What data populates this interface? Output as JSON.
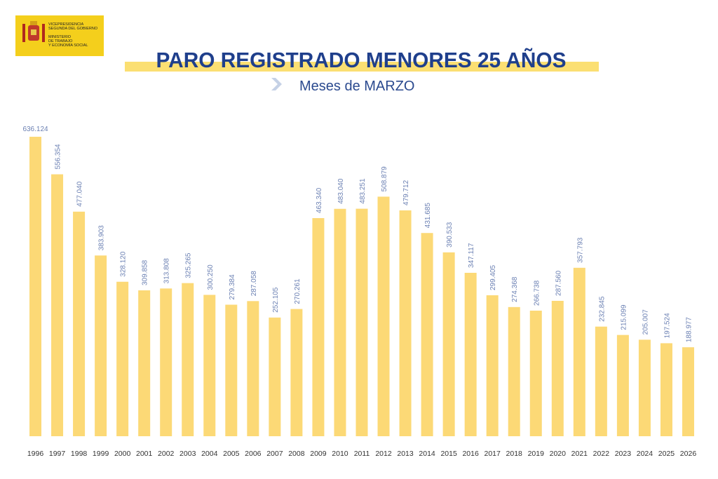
{
  "logo": [
    "VICEPRESIDENCIA",
    "SEGUNDA DEL GOBIERNO",
    "MINISTERIO",
    "DE TRABAJO",
    "Y ECONOMÍA SOCIAL"
  ],
  "chart_data": {
    "type": "bar",
    "title": "PARO REGISTRADO MENORES 25 AÑOS",
    "subtitle": "Meses de MARZO",
    "categories": [
      "1996",
      "1997",
      "1998",
      "1999",
      "2000",
      "2001",
      "2002",
      "2003",
      "2004",
      "2005",
      "2006",
      "2007",
      "2008",
      "2009",
      "2010",
      "2011",
      "2012",
      "2013",
      "2014",
      "2015",
      "2016",
      "2017",
      "2018",
      "2019",
      "2020",
      "2021",
      "2022",
      "2023",
      "2024",
      "2025",
      "2026"
    ],
    "values": [
      636124,
      556354,
      477040,
      383903,
      328120,
      309858,
      313808,
      325265,
      300250,
      279384,
      287058,
      252105,
      270261,
      463340,
      483040,
      483251,
      508879,
      479712,
      431685,
      390533,
      347117,
      299405,
      274368,
      266738,
      287560,
      357793,
      232845,
      215099,
      205007,
      197524,
      188977
    ],
    "value_labels": [
      "636.124",
      "556.354",
      "477.040",
      "383.903",
      "328.120",
      "309.858",
      "313.808",
      "325.265",
      "300.250",
      "279.384",
      "287.058",
      "252.105",
      "270.261",
      "463.340",
      "483.040",
      "483.251",
      "508.879",
      "479.712",
      "431.685",
      "390.533",
      "347.117",
      "299.405",
      "274.368",
      "266.738",
      "287.560",
      "357.793",
      "232.845",
      "215.099",
      "205.007",
      "197.524",
      "188.977"
    ],
    "color": "#fcd976"
  }
}
